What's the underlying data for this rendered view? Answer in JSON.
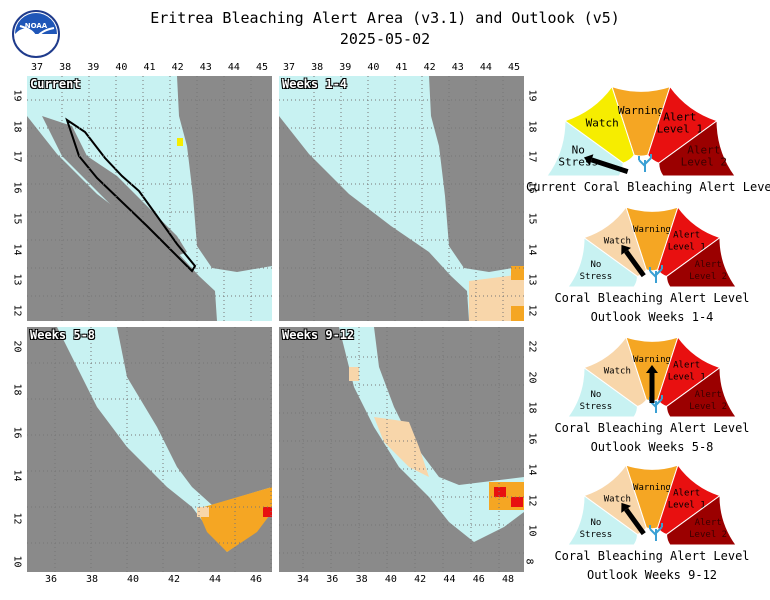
{
  "title_line1": "Eritrea Bleaching Alert Area (v3.1) and Outlook (v5)",
  "title_line2": "2025-05-02",
  "logo_text": "NOAA",
  "colors": {
    "no_stress": "#c8f2f2",
    "watch": "#f6ed00",
    "watch_outlook": "#f8d6aa",
    "warning": "#f5a623",
    "alert1": "#e81010",
    "alert2": "#9b0000",
    "land": "#8a8a8a",
    "coral_icon": "#3aa0d4"
  },
  "maps": {
    "current": {
      "label": "Current",
      "top_ticks": [
        "37",
        "38",
        "39",
        "40",
        "41",
        "42",
        "43",
        "44",
        "45"
      ],
      "left_ticks": [
        "19",
        "18",
        "17",
        "16",
        "15",
        "14",
        "13",
        "12"
      ]
    },
    "weeks_1_4": {
      "label": "Weeks 1-4",
      "top_ticks": [
        "37",
        "38",
        "39",
        "40",
        "41",
        "42",
        "43",
        "44",
        "45"
      ],
      "right_ticks": [
        "19",
        "18",
        "17",
        "16",
        "15",
        "14",
        "13",
        "12"
      ]
    },
    "weeks_5_8": {
      "label": "Weeks 5-8",
      "bottom_ticks": [
        "36",
        "38",
        "40",
        "42",
        "44",
        "46"
      ],
      "left_ticks": [
        "20",
        "18",
        "16",
        "14",
        "12",
        "10"
      ]
    },
    "weeks_9_12": {
      "label": "Weeks 9-12",
      "bottom_ticks": [
        "34",
        "36",
        "38",
        "40",
        "42",
        "44",
        "46",
        "48"
      ],
      "right_ticks": [
        "22",
        "20",
        "18",
        "16",
        "14",
        "12",
        "10",
        "8"
      ]
    }
  },
  "gauges": {
    "segment_labels": {
      "no_stress": [
        "No",
        "Stress"
      ],
      "watch": "Watch",
      "warning": "Warning",
      "alert1": [
        "Alert",
        "Level 1"
      ],
      "alert2": [
        "Alert",
        "Level 2"
      ]
    },
    "current": {
      "caption1": "Current Coral Bleaching Alert Level",
      "caption2": "",
      "level": "No Stress"
    },
    "weeks_1_4": {
      "caption1": "Coral Bleaching Alert Level",
      "caption2": "Outlook Weeks 1-4",
      "level": "Watch"
    },
    "weeks_5_8": {
      "caption1": "Coral Bleaching Alert Level",
      "caption2": "Outlook Weeks 5-8",
      "level": "Warning"
    },
    "weeks_9_12": {
      "caption1": "Coral Bleaching Alert Level",
      "caption2": "Outlook Weeks 9-12",
      "level": "Watch"
    }
  }
}
